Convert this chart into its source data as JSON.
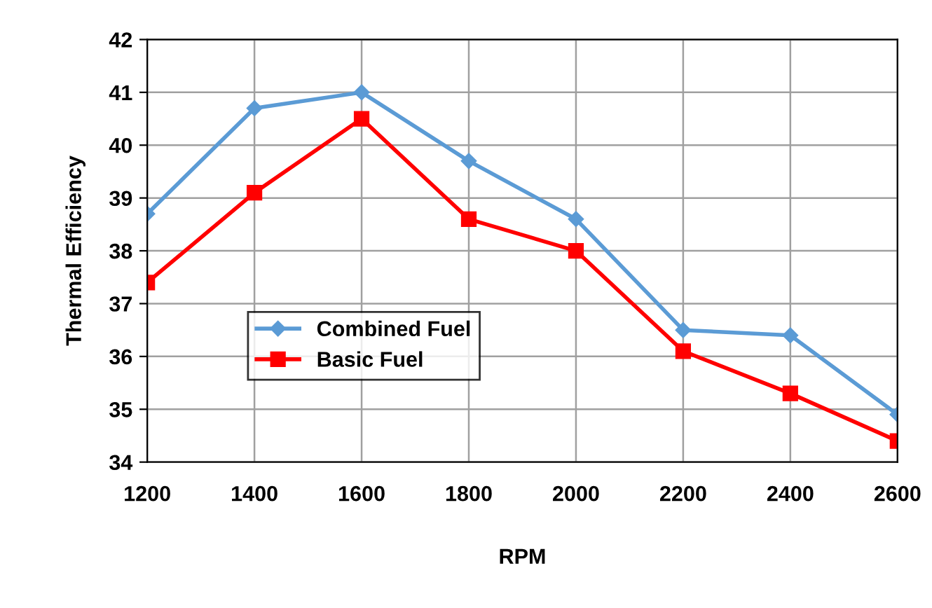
{
  "chart_data": {
    "type": "line",
    "xlabel": "RPM",
    "ylabel": "Thermal Efficiency",
    "x": [
      1200,
      1400,
      1600,
      1800,
      2000,
      2200,
      2400,
      2600
    ],
    "series": [
      {
        "name": "Combined Fuel",
        "color": "#5b9bd5",
        "marker": "diamond",
        "values": [
          38.7,
          40.7,
          41.0,
          39.7,
          38.6,
          36.5,
          36.4,
          34.9
        ]
      },
      {
        "name": "Basic Fuel",
        "color": "#ff0000",
        "marker": "square",
        "values": [
          37.4,
          39.1,
          40.5,
          38.6,
          38.0,
          36.1,
          35.3,
          34.4
        ]
      }
    ],
    "xlim": [
      1200,
      2600
    ],
    "xticks": [
      1200,
      1400,
      1600,
      1800,
      2000,
      2200,
      2400,
      2600
    ],
    "ylim": [
      34,
      42
    ],
    "yticks": [
      34,
      35,
      36,
      37,
      38,
      39,
      40,
      41,
      42
    ],
    "grid": true,
    "legend": "center left",
    "line_style": "solid"
  }
}
